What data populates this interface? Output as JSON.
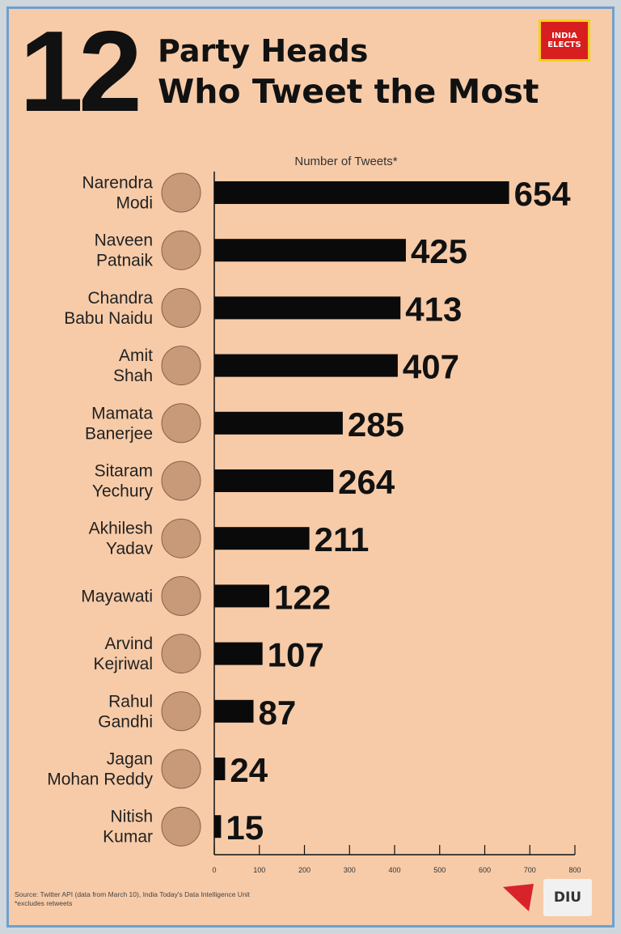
{
  "header": {
    "number": "12",
    "title_line1": "Party Heads",
    "title_line2": "Who Tweet the Most",
    "badge_line1": "INDIA",
    "badge_line2": "ELECTS"
  },
  "chart_data": {
    "type": "bar",
    "orientation": "horizontal",
    "axis_title": "Number of Tweets*",
    "categories": [
      [
        "Narendra",
        "Modi"
      ],
      [
        "Naveen",
        "Patnaik"
      ],
      [
        "Chandra",
        "Babu Naidu"
      ],
      [
        "Amit",
        "Shah"
      ],
      [
        "Mamata",
        "Banerjee"
      ],
      [
        "Sitaram",
        "Yechury"
      ],
      [
        "Akhilesh",
        "Yadav"
      ],
      [
        "Mayawati"
      ],
      [
        "Arvind",
        "Kejriwal"
      ],
      [
        "Rahul",
        "Gandhi"
      ],
      [
        "Jagan",
        "Mohan Reddy"
      ],
      [
        "Nitish",
        "Kumar"
      ]
    ],
    "values": [
      654,
      425,
      413,
      407,
      285,
      264,
      211,
      122,
      107,
      87,
      24,
      15
    ],
    "value_labels": [
      "654",
      "425",
      "413",
      "407",
      "285",
      "264",
      "211",
      "122",
      "107",
      "87",
      "24",
      "15"
    ],
    "xlim": [
      0,
      800
    ],
    "x_ticks": [
      0,
      100,
      200,
      300,
      400,
      500,
      600,
      700,
      800
    ],
    "x_tick_labels": [
      "0",
      "100",
      "200",
      "300",
      "400",
      "500",
      "600",
      "700",
      "800"
    ],
    "bar_color": "#0a0a0a",
    "background": "#f7cba8",
    "grid": false
  },
  "footer": {
    "source": "Source: Twitter API (data from March 10), India Today's Data Intelligence Unit",
    "note": "*excludes retweets",
    "logo_itg": "INDIA TODAY GROUP",
    "logo_diu": "DIU"
  }
}
